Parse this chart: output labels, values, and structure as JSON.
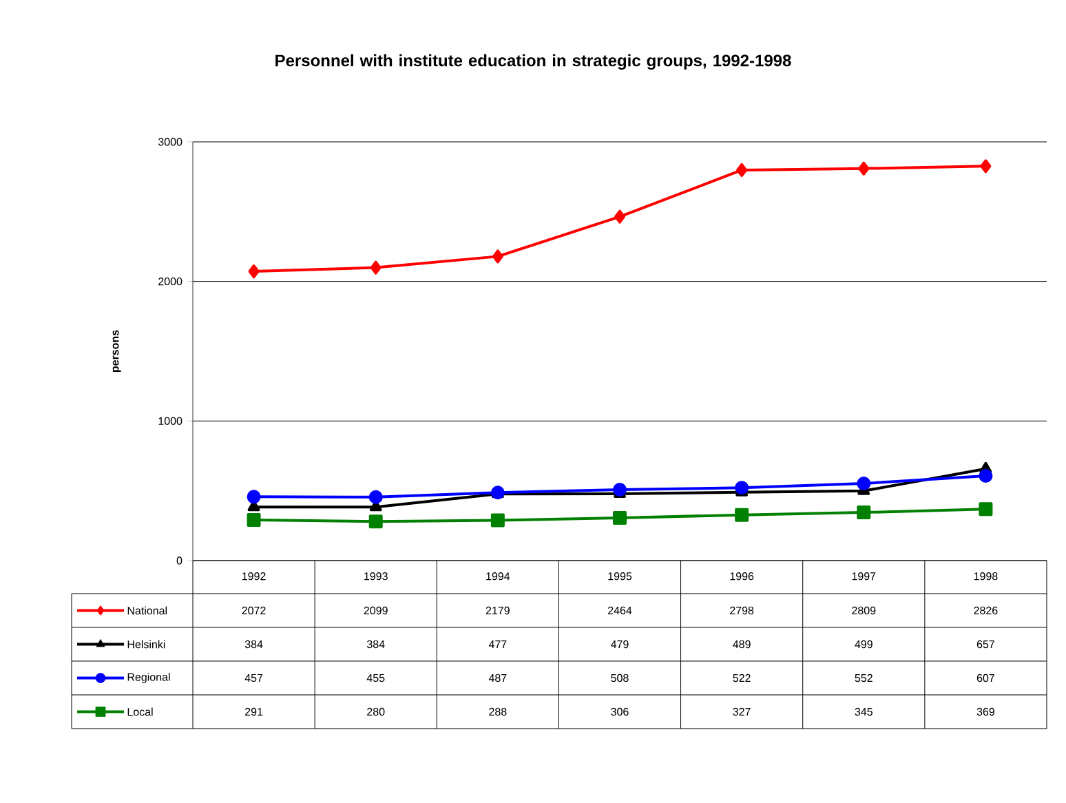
{
  "chart_data": {
    "type": "line",
    "title": "Personnel with institute education in strategic groups, 1992-1998",
    "ylabel": "persons",
    "categories": [
      "1992",
      "1993",
      "1994",
      "1995",
      "1996",
      "1997",
      "1998"
    ],
    "series": [
      {
        "name": "National",
        "color": "#ff0000",
        "marker": "diamond",
        "values": [
          2072,
          2099,
          2179,
          2464,
          2798,
          2809,
          2826
        ]
      },
      {
        "name": "Helsinki",
        "color": "#000000",
        "marker": "triangle",
        "values": [
          384,
          384,
          477,
          479,
          489,
          499,
          657
        ]
      },
      {
        "name": "Regional",
        "color": "#0000ff",
        "marker": "circle",
        "values": [
          457,
          455,
          487,
          508,
          522,
          552,
          607
        ]
      },
      {
        "name": "Local",
        "color": "#008000",
        "marker": "square",
        "values": [
          291,
          280,
          288,
          306,
          327,
          345,
          369
        ]
      }
    ],
    "ylim": [
      0,
      3000
    ],
    "yticks": [
      0,
      1000,
      2000,
      3000
    ],
    "grid": "y",
    "legend": "bottom",
    "data_labels": true,
    "line_style": "solid"
  }
}
